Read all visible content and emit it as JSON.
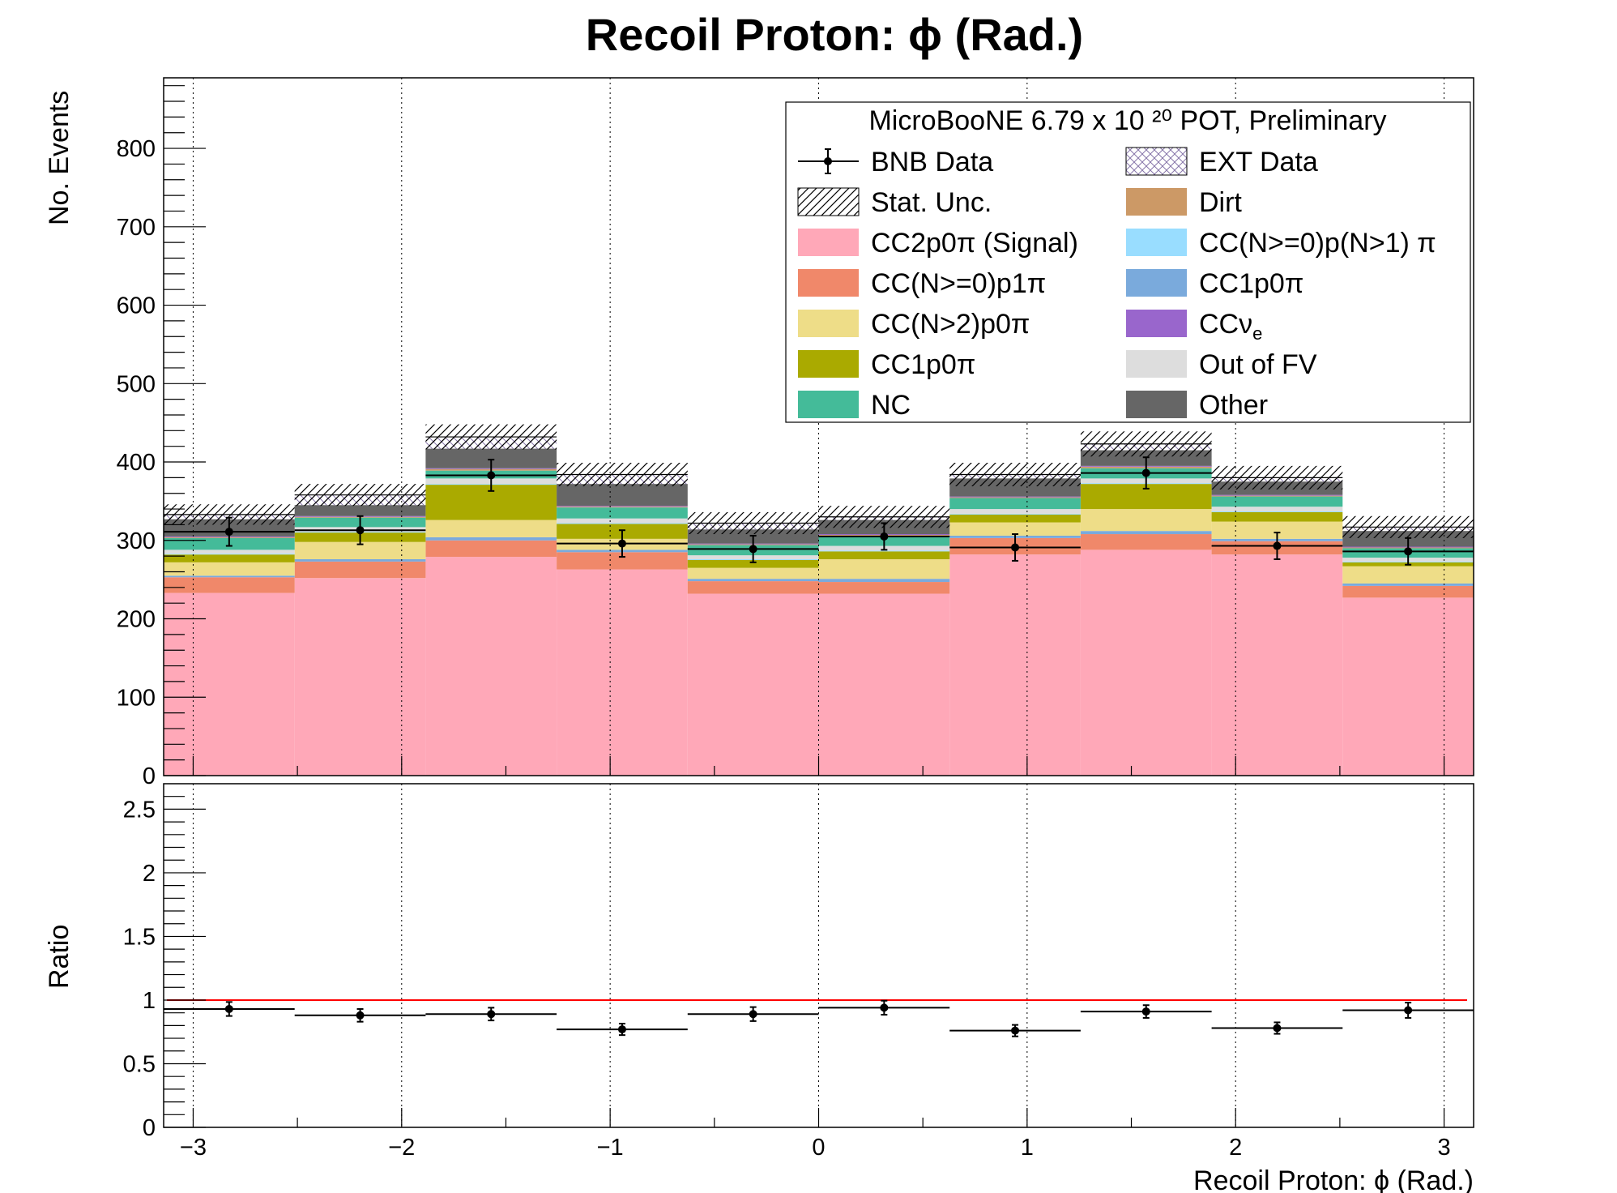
{
  "title": "Recoil Proton:  ϕ (Rad.)",
  "legend_header": "MicroBooNE 6.79 x 10 ²⁰ POT, Preliminary",
  "chart_data": {
    "type": "bar",
    "stacked": true,
    "xlabel": "Recoil Proton: ϕ (Rad.)",
    "ylabel": "No. Events",
    "ratio_ylabel": "Ratio",
    "xlim": [
      -3.14159,
      3.14159
    ],
    "ylim": [
      0,
      890
    ],
    "ratio_ylim": [
      0,
      2.7
    ],
    "x_ticks": [
      "−3",
      "−2",
      "−1",
      "0",
      "1",
      "2",
      "3"
    ],
    "y_ticks": [
      "0",
      "100",
      "200",
      "300",
      "400",
      "500",
      "600",
      "700",
      "800"
    ],
    "ratio_y_ticks": [
      "0",
      "0.5",
      "1",
      "1.5",
      "2",
      "2.5"
    ],
    "grid": "vertical dotted at integer x",
    "legend_position": "top-right",
    "bin_edges": [
      -3.14159,
      -2.51327,
      -1.88496,
      -1.25664,
      -0.62832,
      0.0,
      0.62832,
      1.25664,
      1.88496,
      2.51327,
      3.14159
    ],
    "series": [
      {
        "name": "CC2p0π (Signal)",
        "color": "#ffa8b8",
        "values": [
          233,
          252,
          279,
          263,
          232,
          232,
          282,
          288,
          282,
          227
        ]
      },
      {
        "name": "CC(N>=0)p1π",
        "color": "#f0886a",
        "values": [
          20,
          21,
          21,
          22,
          16,
          15,
          21,
          20,
          17,
          15
        ]
      },
      {
        "name": "CC1p0π",
        "color": "#7aaadc",
        "values": [
          2,
          3,
          4,
          3,
          3,
          4,
          3,
          4,
          3,
          3
        ]
      },
      {
        "name": "CC(N>2)p0π",
        "color": "#eedd88",
        "values": [
          17,
          22,
          22,
          14,
          14,
          25,
          17,
          28,
          22,
          22
        ]
      },
      {
        "name": "CC1p0π",
        "color": "#aaaa00",
        "values": [
          10,
          12,
          45,
          19,
          10,
          10,
          10,
          32,
          12,
          5
        ]
      },
      {
        "name": "CC(N>=0)p(N>1)π",
        "color": "#99ddff",
        "values": [
          1,
          1,
          1,
          1,
          1,
          1,
          1,
          1,
          1,
          1
        ]
      },
      {
        "name": "Out of FV",
        "color": "#dddddd",
        "values": [
          5,
          6,
          7,
          6,
          5,
          6,
          6,
          6,
          6,
          5
        ]
      },
      {
        "name": "NC",
        "color": "#44bb99",
        "values": [
          15,
          12,
          10,
          14,
          13,
          13,
          14,
          13,
          13,
          12
        ]
      },
      {
        "name": "Dirt",
        "color": "#cc9966",
        "values": [
          1,
          1,
          2,
          1,
          1,
          1,
          1,
          2,
          1,
          1
        ]
      },
      {
        "name": "CCνe",
        "color": "#9966cc",
        "values": [
          1,
          1,
          1,
          1,
          1,
          1,
          1,
          1,
          1,
          1
        ]
      },
      {
        "name": "Other",
        "color": "#666666",
        "values": [
          22,
          14,
          25,
          28,
          18,
          18,
          23,
          20,
          17,
          20
        ]
      },
      {
        "name": "EXT Data",
        "color": "#9988bb",
        "values": [
          6,
          13,
          15,
          12,
          8,
          4,
          5,
          8,
          5,
          5
        ]
      }
    ],
    "stat_unc": [
      13,
      14,
      16,
      15,
      14,
      14,
      15,
      16,
      15,
      14
    ],
    "data": {
      "name": "BNB Data",
      "values": [
        311,
        313,
        383,
        296,
        289,
        305,
        291,
        386,
        293,
        286
      ],
      "errors": [
        18,
        18,
        20,
        17,
        17,
        17,
        17,
        20,
        17,
        17
      ]
    },
    "ratio": {
      "values": [
        0.93,
        0.88,
        0.89,
        0.77,
        0.89,
        0.94,
        0.76,
        0.91,
        0.78,
        0.92
      ],
      "errors": [
        0.055,
        0.05,
        0.05,
        0.045,
        0.055,
        0.055,
        0.045,
        0.05,
        0.045,
        0.06
      ],
      "reference": 1.0
    },
    "legend_entries": [
      {
        "label": "BNB Data",
        "kind": "marker"
      },
      {
        "label": "EXT Data",
        "kind": "hatch-cross",
        "color": "#9988bb"
      },
      {
        "label": "Stat. Unc.",
        "kind": "hatch"
      },
      {
        "label": "Dirt",
        "kind": "fill",
        "color": "#cc9966"
      },
      {
        "label": "CC2p0π (Signal)",
        "kind": "fill",
        "color": "#ffa8b8"
      },
      {
        "label": "CC(N>=0)p(N>1) π",
        "kind": "fill",
        "color": "#99ddff"
      },
      {
        "label": "CC(N>=0)p1π",
        "kind": "fill",
        "color": "#f0886a"
      },
      {
        "label": "CC1p0π",
        "kind": "fill",
        "color": "#7aaadc"
      },
      {
        "label": "CC(N>2)p0π",
        "kind": "fill",
        "color": "#eedd88"
      },
      {
        "label": "CCν",
        "sub": "e",
        "kind": "fill",
        "color": "#9966cc"
      },
      {
        "label": "CC1p0π",
        "kind": "fill",
        "color": "#aaaa00"
      },
      {
        "label": "Out of FV",
        "kind": "fill",
        "color": "#dddddd"
      },
      {
        "label": "NC",
        "kind": "fill",
        "color": "#44bb99"
      },
      {
        "label": "Other",
        "kind": "fill",
        "color": "#666666"
      }
    ]
  }
}
